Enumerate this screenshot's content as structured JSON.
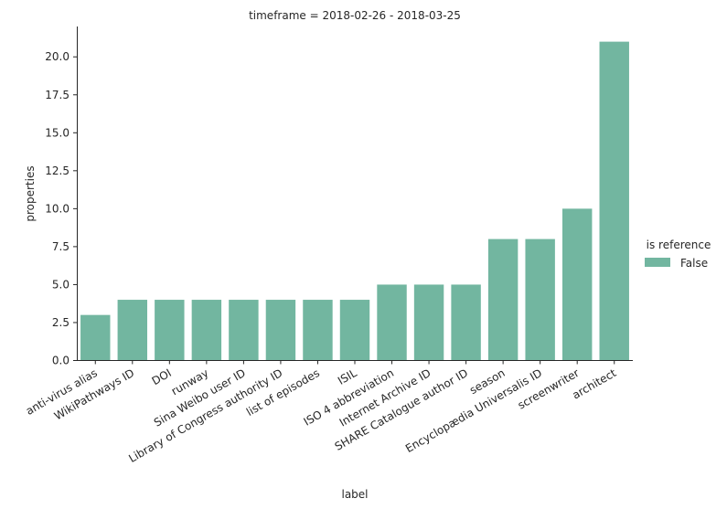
{
  "chart_data": {
    "type": "bar",
    "title": "timeframe = 2018-02-26 - 2018-03-25",
    "xlabel": "label",
    "ylabel": "properties",
    "categories": [
      "anti-virus alias",
      "WikiPathways ID",
      "DOI",
      "runway",
      "Sina Weibo user ID",
      "Library of Congress authority ID",
      "list of episodes",
      "ISIL",
      "ISO 4 abbreviation",
      "Internet Archive ID",
      "SHARE Catalogue author ID",
      "season",
      "Encyclopædia Universalis ID",
      "screenwriter",
      "architect"
    ],
    "series": [
      {
        "name": "False",
        "values": [
          3,
          4,
          4,
          4,
          4,
          4,
          4,
          4,
          5,
          5,
          5,
          8,
          8,
          10,
          21
        ],
        "color": "#72b6a0"
      }
    ],
    "ylim": [
      0,
      22
    ],
    "yticks": [
      "0.0",
      "2.5",
      "5.0",
      "7.5",
      "10.0",
      "12.5",
      "15.0",
      "17.5",
      "20.0"
    ],
    "legend": {
      "title": "is reference",
      "position": "right"
    },
    "grid": false
  }
}
